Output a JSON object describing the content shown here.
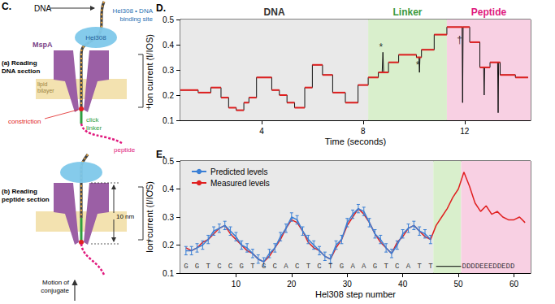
{
  "diagram": {
    "panel_label": "C.",
    "dna": "DNA",
    "binding_site": [
      "Hel308 • DNA",
      "binding site"
    ],
    "helicase": "Hel308",
    "reading_dna": [
      "(a) Reading",
      "DNA section"
    ],
    "pore": "MspA",
    "bilayer": [
      "lipid",
      "bilayer"
    ],
    "constriction": "constriction",
    "linker": [
      "click",
      "linker"
    ],
    "peptide": "peptide",
    "reading_peptide": [
      "(b) Reading",
      "peptide section"
    ],
    "length": "10 nm",
    "motion": [
      "Motion of",
      "conjugate"
    ],
    "electrodes": [
      "-",
      "+"
    ]
  },
  "chart_data": [
    {
      "panel_label": "D.",
      "type": "line",
      "xlabel": "Time (seconds)",
      "ylabel": "Ion current (I/IOS)",
      "xlim": [
        0.8,
        14.6
      ],
      "xticks": [
        4,
        8,
        12
      ],
      "ylim": [
        0.1,
        0.5
      ],
      "yticks": [
        0.1,
        0.2,
        0.3,
        0.4,
        0.5
      ],
      "grid": false,
      "regions": [
        {
          "label": "DNA",
          "start": 0.8,
          "end": 8.2,
          "color": "#e9e9e9",
          "label_color": "#333333"
        },
        {
          "label": "Linker",
          "start": 8.2,
          "end": 11.3,
          "color": "#d9efcc",
          "label_color": "#3d9a3d"
        },
        {
          "label": "Peptide",
          "start": 11.3,
          "end": 14.6,
          "color": "#f8d0e3",
          "label_color": "#e0197d"
        }
      ],
      "series": [
        {
          "type": "line",
          "color": "#111111",
          "x": [
            0.8,
            1.5,
            1.5,
            2.0,
            2.0,
            2.4,
            2.4,
            2.7,
            2.7,
            3.0,
            3.0,
            3.3,
            3.3,
            3.5,
            3.5,
            3.8,
            3.8,
            4.4,
            4.4,
            4.7,
            4.7,
            5.0,
            5.0,
            5.3,
            5.3,
            5.7,
            5.7,
            6.0,
            6.0,
            6.4,
            6.4,
            6.8,
            6.8,
            7.3,
            7.3,
            7.8,
            7.8,
            8.2,
            8.2,
            8.6,
            8.6,
            8.75,
            8.78,
            8.81,
            9.0,
            9.0,
            9.4,
            9.4,
            10.1,
            10.1,
            10.2,
            10.22,
            10.24,
            10.3,
            10.3,
            10.8,
            10.8,
            11.3,
            11.3,
            11.9,
            11.92,
            11.94,
            12.2,
            12.2,
            12.6,
            12.6,
            12.75,
            12.77,
            12.79,
            13.0,
            13.0,
            13.3,
            13.32,
            13.34,
            13.4,
            13.4,
            14.0,
            14.0,
            14.5
          ],
          "values": [
            0.22,
            0.22,
            0.21,
            0.21,
            0.23,
            0.23,
            0.19,
            0.19,
            0.15,
            0.15,
            0.14,
            0.14,
            0.17,
            0.17,
            0.19,
            0.19,
            0.27,
            0.27,
            0.22,
            0.22,
            0.2,
            0.2,
            0.17,
            0.17,
            0.15,
            0.15,
            0.23,
            0.23,
            0.32,
            0.32,
            0.28,
            0.28,
            0.21,
            0.21,
            0.17,
            0.17,
            0.24,
            0.24,
            0.27,
            0.27,
            0.29,
            0.29,
            0.37,
            0.29,
            0.29,
            0.33,
            0.33,
            0.36,
            0.36,
            0.35,
            0.35,
            0.29,
            0.35,
            0.35,
            0.38,
            0.38,
            0.44,
            0.44,
            0.47,
            0.47,
            0.17,
            0.47,
            0.47,
            0.41,
            0.41,
            0.31,
            0.31,
            0.2,
            0.31,
            0.31,
            0.33,
            0.33,
            0.13,
            0.33,
            0.33,
            0.28,
            0.28,
            0.27,
            0.27
          ]
        },
        {
          "type": "step",
          "color": "#e02020",
          "levels": [
            {
              "start": 0.8,
              "end": 1.5,
              "value": 0.22
            },
            {
              "start": 1.5,
              "end": 2.0,
              "value": 0.21
            },
            {
              "start": 2.0,
              "end": 2.4,
              "value": 0.23
            },
            {
              "start": 2.4,
              "end": 2.7,
              "value": 0.19
            },
            {
              "start": 2.7,
              "end": 3.0,
              "value": 0.15
            },
            {
              "start": 3.0,
              "end": 3.3,
              "value": 0.14
            },
            {
              "start": 3.3,
              "end": 3.5,
              "value": 0.17
            },
            {
              "start": 3.5,
              "end": 3.8,
              "value": 0.19
            },
            {
              "start": 3.8,
              "end": 4.4,
              "value": 0.27
            },
            {
              "start": 4.4,
              "end": 4.7,
              "value": 0.22
            },
            {
              "start": 4.7,
              "end": 5.0,
              "value": 0.2
            },
            {
              "start": 5.0,
              "end": 5.3,
              "value": 0.17
            },
            {
              "start": 5.3,
              "end": 5.7,
              "value": 0.15
            },
            {
              "start": 5.7,
              "end": 6.0,
              "value": 0.23
            },
            {
              "start": 6.0,
              "end": 6.4,
              "value": 0.32
            },
            {
              "start": 6.4,
              "end": 6.8,
              "value": 0.28
            },
            {
              "start": 6.8,
              "end": 7.3,
              "value": 0.21
            },
            {
              "start": 7.3,
              "end": 7.8,
              "value": 0.17
            },
            {
              "start": 7.8,
              "end": 8.2,
              "value": 0.24
            },
            {
              "start": 8.2,
              "end": 8.6,
              "value": 0.27
            },
            {
              "start": 8.6,
              "end": 9.0,
              "value": 0.29
            },
            {
              "start": 9.0,
              "end": 9.4,
              "value": 0.33
            },
            {
              "start": 9.4,
              "end": 10.1,
              "value": 0.36
            },
            {
              "start": 10.1,
              "end": 10.3,
              "value": 0.35
            },
            {
              "start": 10.3,
              "end": 10.8,
              "value": 0.38
            },
            {
              "start": 10.8,
              "end": 11.3,
              "value": 0.44
            },
            {
              "start": 11.3,
              "end": 12.2,
              "value": 0.47
            },
            {
              "start": 12.2,
              "end": 12.6,
              "value": 0.41
            },
            {
              "start": 12.6,
              "end": 13.0,
              "value": 0.31
            },
            {
              "start": 13.0,
              "end": 13.4,
              "value": 0.33
            },
            {
              "start": 13.4,
              "end": 14.0,
              "value": 0.28
            },
            {
              "start": 14.0,
              "end": 14.5,
              "value": 0.27
            }
          ]
        }
      ],
      "annotations": [
        {
          "text": "*",
          "x": 8.7,
          "y": 0.39
        },
        {
          "text": "*",
          "x": 10.15,
          "y": 0.32
        },
        {
          "text": "†",
          "x": 11.8,
          "y": 0.42
        }
      ]
    },
    {
      "panel_label": "E.",
      "type": "line",
      "xlabel": "Hel308 step number",
      "ylabel": "Ion current (I/IOS)",
      "xlim": [
        0,
        63
      ],
      "xticks": [
        10,
        20,
        30,
        40,
        50,
        60
      ],
      "ylim": [
        0.1,
        0.5
      ],
      "yticks": [
        0.1,
        0.2,
        0.3,
        0.4,
        0.5
      ],
      "grid": false,
      "legend": "top-left",
      "regions": [
        {
          "start": 0,
          "end": 45.5,
          "color": "#e9e9e9"
        },
        {
          "start": 45.5,
          "end": 50.5,
          "color": "#d9efcc"
        },
        {
          "start": 50.5,
          "end": 63,
          "color": "#f8d0e3"
        }
      ],
      "series": [
        {
          "name": "Predicted levels",
          "color": "#3a7fd5",
          "x": [
            1,
            2,
            3,
            4,
            5,
            6,
            7,
            8,
            9,
            10,
            11,
            12,
            13,
            14,
            15,
            16,
            17,
            18,
            19,
            20,
            21,
            22,
            23,
            24,
            25,
            26,
            27,
            28,
            29,
            30,
            31,
            32,
            33,
            34,
            35,
            36,
            37,
            38,
            39,
            40,
            41,
            42,
            43,
            44,
            45
          ],
          "values": [
            0.18,
            0.18,
            0.19,
            0.2,
            0.22,
            0.25,
            0.26,
            0.27,
            0.25,
            0.23,
            0.2,
            0.19,
            0.17,
            0.15,
            0.14,
            0.17,
            0.19,
            0.23,
            0.26,
            0.3,
            0.29,
            0.25,
            0.22,
            0.2,
            0.18,
            0.16,
            0.15,
            0.2,
            0.22,
            0.28,
            0.31,
            0.33,
            0.32,
            0.28,
            0.24,
            0.22,
            0.19,
            0.17,
            0.2,
            0.24,
            0.26,
            0.27,
            0.25,
            0.24,
            0.22
          ],
          "errors": [
            0.015,
            0.015,
            0.015,
            0.015,
            0.015,
            0.015,
            0.015,
            0.015,
            0.015,
            0.015,
            0.015,
            0.015,
            0.015,
            0.015,
            0.015,
            0.015,
            0.015,
            0.015,
            0.015,
            0.015,
            0.015,
            0.015,
            0.015,
            0.015,
            0.015,
            0.015,
            0.015,
            0.015,
            0.015,
            0.015,
            0.015,
            0.015,
            0.015,
            0.015,
            0.015,
            0.015,
            0.015,
            0.015,
            0.015,
            0.015,
            0.015,
            0.015,
            0.015,
            0.015,
            0.015
          ]
        },
        {
          "name": "Measured levels",
          "color": "#e02020",
          "x": [
            1,
            2,
            3,
            4,
            5,
            6,
            7,
            8,
            9,
            10,
            11,
            12,
            13,
            14,
            15,
            16,
            17,
            18,
            19,
            20,
            21,
            22,
            23,
            24,
            25,
            26,
            27,
            28,
            29,
            30,
            31,
            32,
            33,
            34,
            35,
            36,
            37,
            38,
            39,
            40,
            41,
            42,
            43,
            44,
            45,
            46,
            47,
            48,
            49,
            50,
            51,
            52,
            53,
            54,
            55,
            56,
            57,
            58,
            59,
            60,
            61,
            62
          ],
          "values": [
            0.19,
            0.18,
            0.19,
            0.21,
            0.22,
            0.24,
            0.26,
            0.27,
            0.24,
            0.22,
            0.2,
            0.18,
            0.17,
            0.15,
            0.14,
            0.16,
            0.19,
            0.22,
            0.26,
            0.29,
            0.28,
            0.25,
            0.21,
            0.19,
            0.18,
            0.16,
            0.15,
            0.19,
            0.22,
            0.27,
            0.3,
            0.33,
            0.31,
            0.28,
            0.24,
            0.21,
            0.19,
            0.17,
            0.21,
            0.23,
            0.26,
            0.27,
            0.25,
            0.23,
            0.22,
            0.27,
            0.3,
            0.33,
            0.37,
            0.4,
            0.46,
            0.41,
            0.35,
            0.32,
            0.34,
            0.31,
            0.32,
            0.3,
            0.29,
            0.29,
            0.3,
            0.28
          ]
        }
      ],
      "sequence": {
        "dna": [
          "G",
          "G",
          "T",
          "C",
          "C",
          "G",
          "T",
          "G",
          "C",
          "A",
          "C",
          "T",
          "C",
          "T",
          "G",
          "A",
          "A",
          "G",
          "T",
          "C",
          "A",
          "T",
          "T"
        ],
        "peptide": "DDDDEEEDDEDD"
      }
    }
  ]
}
